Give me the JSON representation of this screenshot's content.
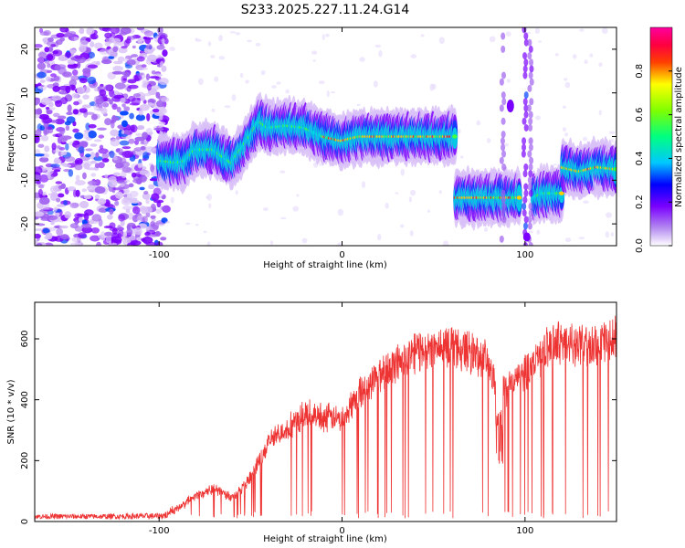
{
  "chart_data": [
    {
      "type": "heatmap",
      "title": "S233.2025.227.11.24.G14",
      "xlabel": "Height of straight line (km)",
      "ylabel": "Frequency (Hz)",
      "xlim": [
        -168,
        150
      ],
      "ylim": [
        -25,
        25
      ],
      "xticks": [
        -100,
        0,
        100
      ],
      "yticks": [
        -20,
        -10,
        0,
        10,
        20
      ],
      "colorbar": {
        "label": "Normalized spectral amplitude",
        "range": [
          0,
          1
        ],
        "ticks": [
          "0.0",
          "0.2",
          "0.4",
          "0.6",
          "0.8"
        ],
        "colors": [
          "#ffffff",
          "#8a2be2",
          "#0000ff",
          "#00ffff",
          "#00ff00",
          "#ffff00",
          "#ff0000",
          "#ff00ff"
        ]
      },
      "ridge": [
        {
          "x": -100,
          "f": -5.5
        },
        {
          "x": -90,
          "f": -6
        },
        {
          "x": -85,
          "f": -5.5
        },
        {
          "x": -80,
          "f": -3
        },
        {
          "x": -70,
          "f": -3
        },
        {
          "x": -60,
          "f": -6
        },
        {
          "x": -55,
          "f": -3
        },
        {
          "x": -50,
          "f": 0
        },
        {
          "x": -45,
          "f": 3.5
        },
        {
          "x": -40,
          "f": 2
        },
        {
          "x": -30,
          "f": 2.5
        },
        {
          "x": -20,
          "f": 2
        },
        {
          "x": -10,
          "f": 0
        },
        {
          "x": 0,
          "f": -1
        },
        {
          "x": 10,
          "f": 0
        },
        {
          "x": 20,
          "f": 0
        },
        {
          "x": 30,
          "f": 0
        },
        {
          "x": 40,
          "f": 0
        },
        {
          "x": 50,
          "f": 0
        },
        {
          "x": 60,
          "f": 0
        },
        {
          "x": 62,
          "f": -14
        },
        {
          "x": 70,
          "f": -14
        },
        {
          "x": 80,
          "f": -14
        },
        {
          "x": 90,
          "f": -14
        },
        {
          "x": 97,
          "f": -14
        },
        {
          "x": 105,
          "f": -14
        },
        {
          "x": 110,
          "f": -13
        },
        {
          "x": 117,
          "f": -13
        },
        {
          "x": 120,
          "f": -7
        },
        {
          "x": 130,
          "f": -8
        },
        {
          "x": 140,
          "f": -7
        },
        {
          "x": 150,
          "f": -7.5
        }
      ]
    },
    {
      "type": "line",
      "xlabel": "Height of straight line (km)",
      "ylabel": "SNR (10 * v/v)",
      "xlim": [
        -168,
        150
      ],
      "ylim": [
        0,
        720
      ],
      "xticks": [
        -100,
        0,
        100
      ],
      "yticks": [
        0,
        200,
        400,
        600
      ],
      "series": [
        {
          "name": "SNR",
          "color": "#ee3333",
          "envelope": [
            {
              "x": -168,
              "y": 25
            },
            {
              "x": -130,
              "y": 25
            },
            {
              "x": -100,
              "y": 28
            },
            {
              "x": -90,
              "y": 45
            },
            {
              "x": -80,
              "y": 90
            },
            {
              "x": -70,
              "y": 120
            },
            {
              "x": -60,
              "y": 85
            },
            {
              "x": -50,
              "y": 150
            },
            {
              "x": -40,
              "y": 280
            },
            {
              "x": -30,
              "y": 330
            },
            {
              "x": -20,
              "y": 380
            },
            {
              "x": -10,
              "y": 370
            },
            {
              "x": 0,
              "y": 360
            },
            {
              "x": 10,
              "y": 460
            },
            {
              "x": 20,
              "y": 520
            },
            {
              "x": 30,
              "y": 560
            },
            {
              "x": 40,
              "y": 600
            },
            {
              "x": 50,
              "y": 610
            },
            {
              "x": 60,
              "y": 620
            },
            {
              "x": 70,
              "y": 600
            },
            {
              "x": 80,
              "y": 560
            },
            {
              "x": 85,
              "y": 450
            },
            {
              "x": 90,
              "y": 470
            },
            {
              "x": 100,
              "y": 530
            },
            {
              "x": 110,
              "y": 600
            },
            {
              "x": 120,
              "y": 640
            },
            {
              "x": 130,
              "y": 620
            },
            {
              "x": 140,
              "y": 630
            },
            {
              "x": 150,
              "y": 650
            }
          ]
        }
      ]
    }
  ]
}
